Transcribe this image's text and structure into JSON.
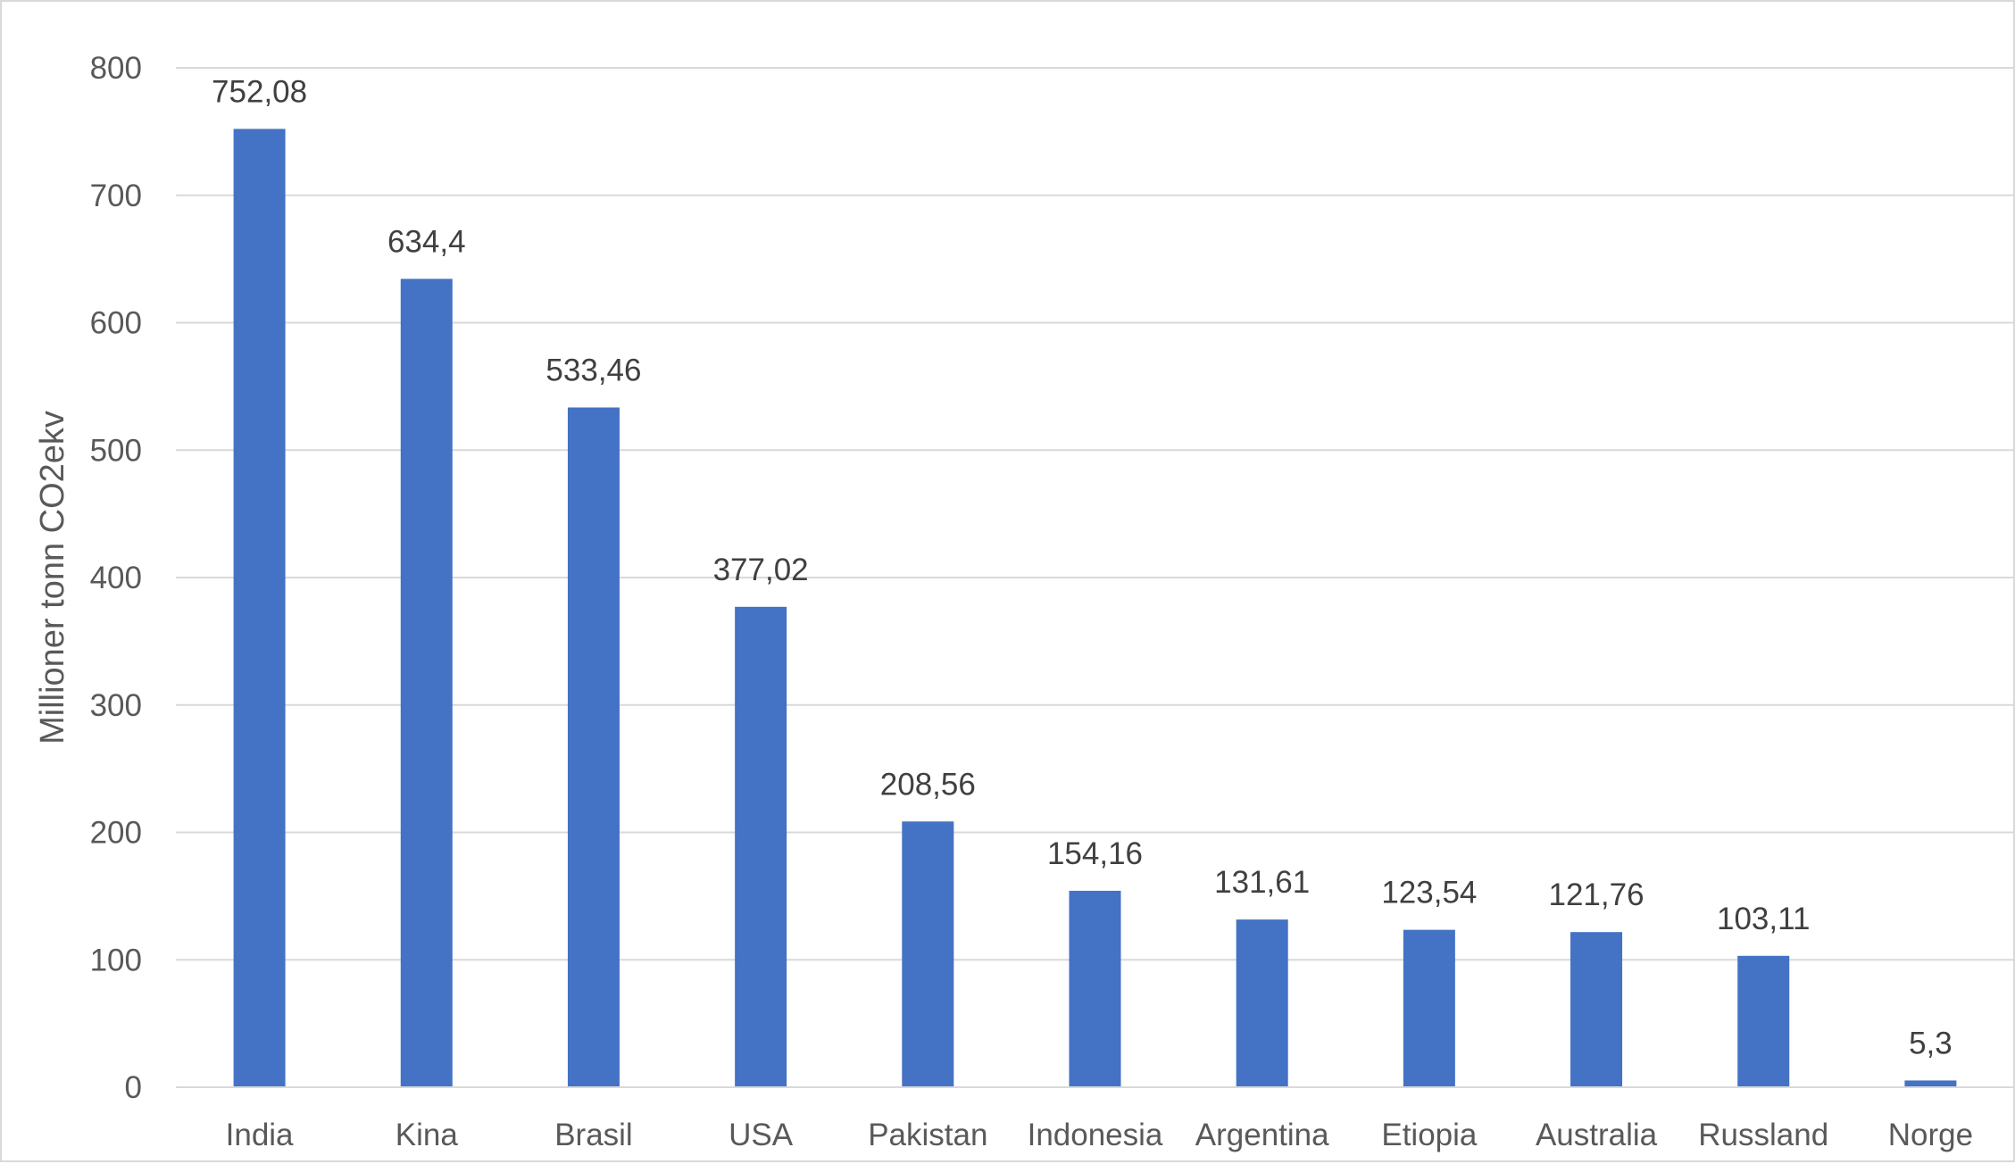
{
  "chart_data": {
    "type": "bar",
    "title": "",
    "xlabel": "",
    "ylabel": "Millioner tonn CO2ekv",
    "ylim": [
      0,
      800
    ],
    "y_ticks": [
      0,
      100,
      200,
      300,
      400,
      500,
      600,
      700,
      800
    ],
    "grid": true,
    "legend": "none",
    "bar_color": "#4472c4",
    "categories": [
      "India",
      "Kina",
      "Brasil",
      "USA",
      "Pakistan",
      "Indonesia",
      "Argentina",
      "Etiopia",
      "Australia",
      "Russland",
      "Norge"
    ],
    "values": [
      752.08,
      634.4,
      533.46,
      377.02,
      208.56,
      154.16,
      131.61,
      123.54,
      121.76,
      103.11,
      5.3
    ],
    "data_labels": [
      "752,08",
      "634,4",
      "533,46",
      "377,02",
      "208,56",
      "154,16",
      "131,61",
      "123,54",
      "121,76",
      "103,11",
      "5,3"
    ]
  }
}
